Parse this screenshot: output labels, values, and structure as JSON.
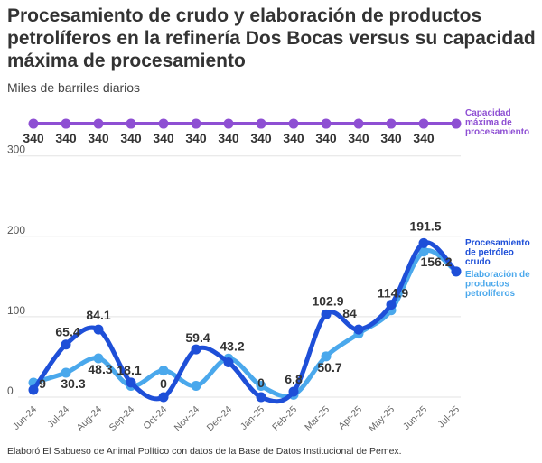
{
  "header": {
    "title": "Procesamiento de crudo y elaboración de productos petrolíferos en la refinería Dos Bocas versus su capacidad máxima de procesamiento",
    "subtitle": "Miles de barriles diarios"
  },
  "footer": {
    "source": "Elaboró El Sabueso de Animal Político con datos de la Base de Datos Institucional de Pemex."
  },
  "colors": {
    "capacity": "#8e4fd3",
    "crude": "#1e4fd8",
    "products": "#4aa8ec",
    "grid": "#e3e3e3"
  },
  "chart_data": {
    "type": "line",
    "categories": [
      "Jun-24",
      "Jul-24",
      "Aug-24",
      "Sep-24",
      "Oct-24",
      "Nov-24",
      "Dec-24",
      "Jan-25",
      "Feb-25",
      "Mar-25",
      "Apr-25",
      "May-25",
      "Jun-25",
      "Jul-25"
    ],
    "ylim": [
      0,
      340
    ],
    "yticks": [
      0,
      100,
      200,
      300
    ],
    "grid": true,
    "legend": "right",
    "series": [
      {
        "name": "Capacidad máxima de procesamiento",
        "legend_lines": [
          "Capacidad",
          "máxima de",
          "procesamiento"
        ],
        "color": "#8e4fd3",
        "values": [
          340,
          340,
          340,
          340,
          340,
          340,
          340,
          340,
          340,
          340,
          340,
          340,
          340,
          340
        ],
        "labels": [
          "340",
          "340",
          "340",
          "340",
          "340",
          "340",
          "340",
          "340",
          "340",
          "340",
          "340",
          "340",
          "340",
          ""
        ]
      },
      {
        "name": "Procesamiento de petróleo crudo",
        "legend_lines": [
          "Procesamiento",
          "de petróleo",
          "crudo"
        ],
        "color": "#1e4fd8",
        "values": [
          9,
          65.4,
          84.1,
          18.1,
          0,
          59.4,
          43.2,
          0,
          6.8,
          102.9,
          84,
          114.9,
          191.5,
          156.2
        ],
        "labels": [
          "9",
          "65.4",
          "84.1",
          "18.1",
          "0",
          "59.4",
          "43.2",
          "0",
          "6.8",
          "102.9",
          "84",
          "114.9",
          "191.5",
          "156.2"
        ]
      },
      {
        "name": "Elaboración de productos petrolíferos",
        "legend_lines": [
          "Elaboración de",
          "productos",
          "petrolíferos"
        ],
        "color": "#4aa8ec",
        "values": [
          18,
          30.3,
          48.3,
          14,
          33,
          14,
          48,
          14,
          3,
          50.7,
          79,
          108,
          181,
          156.2
        ],
        "labels": [
          "",
          "30.3",
          "48.3",
          "",
          "",
          "",
          "",
          "",
          "",
          "50.7",
          "",
          "",
          "",
          ""
        ]
      }
    ]
  }
}
